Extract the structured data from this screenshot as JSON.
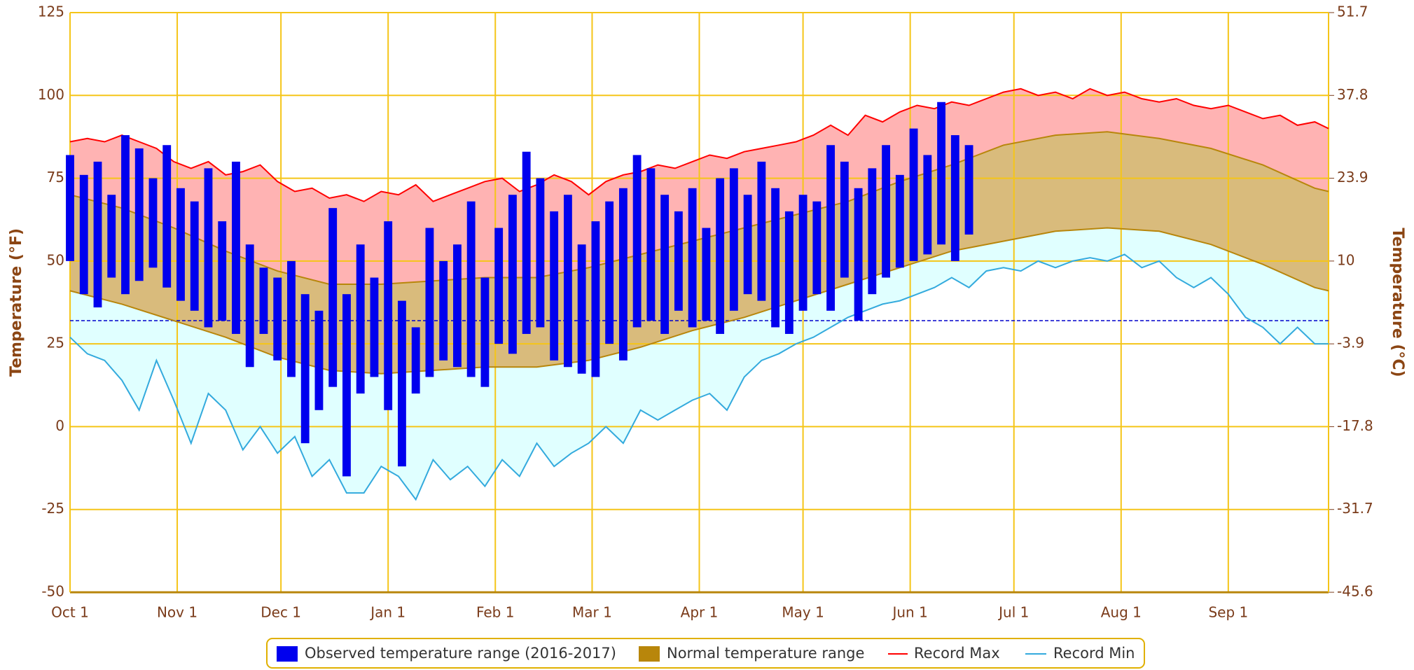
{
  "chart_data": {
    "type": "temperature-range",
    "y_label": "Temperature (°F)",
    "y2_label": "Temperature (°C)",
    "xlim": [
      0,
      364
    ],
    "xticks": [
      {
        "value": 0,
        "label": "Oct 1"
      },
      {
        "value": 31,
        "label": "Nov 1"
      },
      {
        "value": 61,
        "label": "Dec 1"
      },
      {
        "value": 92,
        "label": "Jan 1"
      },
      {
        "value": 123,
        "label": "Feb 1"
      },
      {
        "value": 151,
        "label": "Mar 1"
      },
      {
        "value": 182,
        "label": "Apr 1"
      },
      {
        "value": 212,
        "label": "May 1"
      },
      {
        "value": 243,
        "label": "Jun 1"
      },
      {
        "value": 273,
        "label": "Jul 1"
      },
      {
        "value": 304,
        "label": "Aug 1"
      },
      {
        "value": 335,
        "label": "Sep 1"
      }
    ],
    "ylim": [
      -50,
      125
    ],
    "yticks": [
      -50,
      -25,
      0,
      25,
      50,
      75,
      100,
      125
    ],
    "y2lim": [
      -45.6,
      51.7
    ],
    "y2ticks": [
      -45.6,
      -31.7,
      -17.8,
      -3.9,
      10,
      23.9,
      37.8,
      51.7
    ],
    "grid": true,
    "grid_color": "#f5c518",
    "freezing_line": 32,
    "freezing_color": "#0000cc",
    "series": [
      {
        "name": "Observed temperature range (2016-2017)",
        "color": "#0000ee",
        "x": [
          0,
          4,
          8,
          12,
          16,
          20,
          24,
          28,
          32,
          36,
          40,
          44,
          48,
          52,
          56,
          60,
          64,
          68,
          72,
          76,
          80,
          84,
          88,
          92,
          96,
          100,
          104,
          108,
          112,
          116,
          120,
          124,
          128,
          132,
          136,
          140,
          144,
          148,
          152,
          156,
          160,
          164,
          168,
          172,
          176,
          180,
          184,
          188,
          192,
          196,
          200,
          204,
          208,
          212,
          216,
          220,
          224,
          228,
          232,
          236,
          240,
          244,
          248,
          252,
          256,
          260
        ],
        "high": [
          82,
          76,
          80,
          70,
          88,
          84,
          75,
          85,
          72,
          68,
          78,
          62,
          80,
          55,
          48,
          45,
          50,
          40,
          35,
          66,
          40,
          55,
          45,
          62,
          38,
          30,
          60,
          50,
          55,
          68,
          45,
          60,
          70,
          83,
          75,
          65,
          70,
          55,
          62,
          68,
          72,
          82,
          78,
          70,
          65,
          72,
          60,
          75,
          78,
          70,
          80,
          72,
          65,
          70,
          68,
          85,
          80,
          72,
          78,
          85,
          76,
          90,
          82,
          98,
          88,
          85
        ],
        "low": [
          50,
          40,
          36,
          45,
          40,
          44,
          48,
          42,
          38,
          35,
          30,
          32,
          28,
          18,
          28,
          20,
          15,
          -5,
          5,
          12,
          -15,
          10,
          15,
          5,
          -12,
          10,
          15,
          20,
          18,
          15,
          12,
          25,
          22,
          28,
          30,
          20,
          18,
          16,
          15,
          25,
          20,
          30,
          32,
          28,
          35,
          30,
          32,
          28,
          35,
          40,
          38,
          30,
          28,
          35,
          40,
          35,
          45,
          32,
          40,
          45,
          48,
          50,
          52,
          55,
          50,
          58
        ]
      },
      {
        "name": "Normal temperature range",
        "color": "#b8860b",
        "fill": "#d9bb7c",
        "x": [
          0,
          15,
          30,
          45,
          60,
          75,
          90,
          105,
          120,
          135,
          150,
          165,
          180,
          195,
          210,
          225,
          240,
          255,
          270,
          285,
          300,
          315,
          330,
          345,
          360,
          364
        ],
        "high": [
          70,
          66,
          60,
          53,
          47,
          43,
          43,
          44,
          45,
          45,
          48,
          52,
          56,
          60,
          64,
          68,
          74,
          79,
          85,
          88,
          89,
          87,
          84,
          79,
          72,
          71
        ],
        "low": [
          41,
          37,
          32,
          27,
          21,
          17,
          16,
          17,
          18,
          18,
          20,
          24,
          29,
          33,
          38,
          43,
          48,
          53,
          56,
          59,
          60,
          59,
          55,
          49,
          42,
          41
        ]
      },
      {
        "name": "Record Max",
        "color": "#ff0000",
        "fill": "#ffb3b3",
        "x": [
          0,
          5,
          10,
          15,
          20,
          25,
          30,
          35,
          40,
          45,
          50,
          55,
          60,
          65,
          70,
          75,
          80,
          85,
          90,
          95,
          100,
          105,
          110,
          115,
          120,
          125,
          130,
          135,
          140,
          145,
          150,
          155,
          160,
          165,
          170,
          175,
          180,
          185,
          190,
          195,
          200,
          205,
          210,
          215,
          220,
          225,
          230,
          235,
          240,
          245,
          250,
          255,
          260,
          265,
          270,
          275,
          280,
          285,
          290,
          295,
          300,
          305,
          310,
          315,
          320,
          325,
          330,
          335,
          340,
          345,
          350,
          355,
          360,
          364
        ],
        "values": [
          86,
          87,
          86,
          88,
          86,
          84,
          80,
          78,
          80,
          76,
          77,
          79,
          74,
          71,
          72,
          69,
          70,
          68,
          71,
          70,
          73,
          68,
          70,
          72,
          74,
          75,
          71,
          73,
          76,
          74,
          70,
          74,
          76,
          77,
          79,
          78,
          80,
          82,
          81,
          83,
          84,
          85,
          86,
          88,
          91,
          88,
          94,
          92,
          95,
          97,
          96,
          98,
          97,
          99,
          101,
          102,
          100,
          101,
          99,
          102,
          100,
          101,
          99,
          98,
          99,
          97,
          96,
          97,
          95,
          93,
          94,
          91,
          92,
          90
        ]
      },
      {
        "name": "Record Min",
        "color": "#33aadd",
        "fill": "#e0ffff",
        "x": [
          0,
          5,
          10,
          15,
          20,
          25,
          30,
          35,
          40,
          45,
          50,
          55,
          60,
          65,
          70,
          75,
          80,
          85,
          90,
          95,
          100,
          105,
          110,
          115,
          120,
          125,
          130,
          135,
          140,
          145,
          150,
          155,
          160,
          165,
          170,
          175,
          180,
          185,
          190,
          195,
          200,
          205,
          210,
          215,
          220,
          225,
          230,
          235,
          240,
          245,
          250,
          255,
          260,
          265,
          270,
          275,
          280,
          285,
          290,
          295,
          300,
          305,
          310,
          315,
          320,
          325,
          330,
          335,
          340,
          345,
          350,
          355,
          360,
          364
        ],
        "values": [
          27,
          22,
          20,
          14,
          5,
          20,
          8,
          -5,
          10,
          5,
          -7,
          0,
          -8,
          -3,
          -15,
          -10,
          -20,
          -20,
          -12,
          -15,
          -22,
          -10,
          -16,
          -12,
          -18,
          -10,
          -15,
          -5,
          -12,
          -8,
          -5,
          0,
          -5,
          5,
          2,
          5,
          8,
          10,
          5,
          15,
          20,
          22,
          25,
          27,
          30,
          33,
          35,
          37,
          38,
          40,
          42,
          45,
          42,
          47,
          48,
          47,
          50,
          48,
          50,
          51,
          50,
          52,
          48,
          50,
          45,
          42,
          45,
          40,
          33,
          30,
          25,
          30,
          25,
          25
        ]
      }
    ]
  }
}
